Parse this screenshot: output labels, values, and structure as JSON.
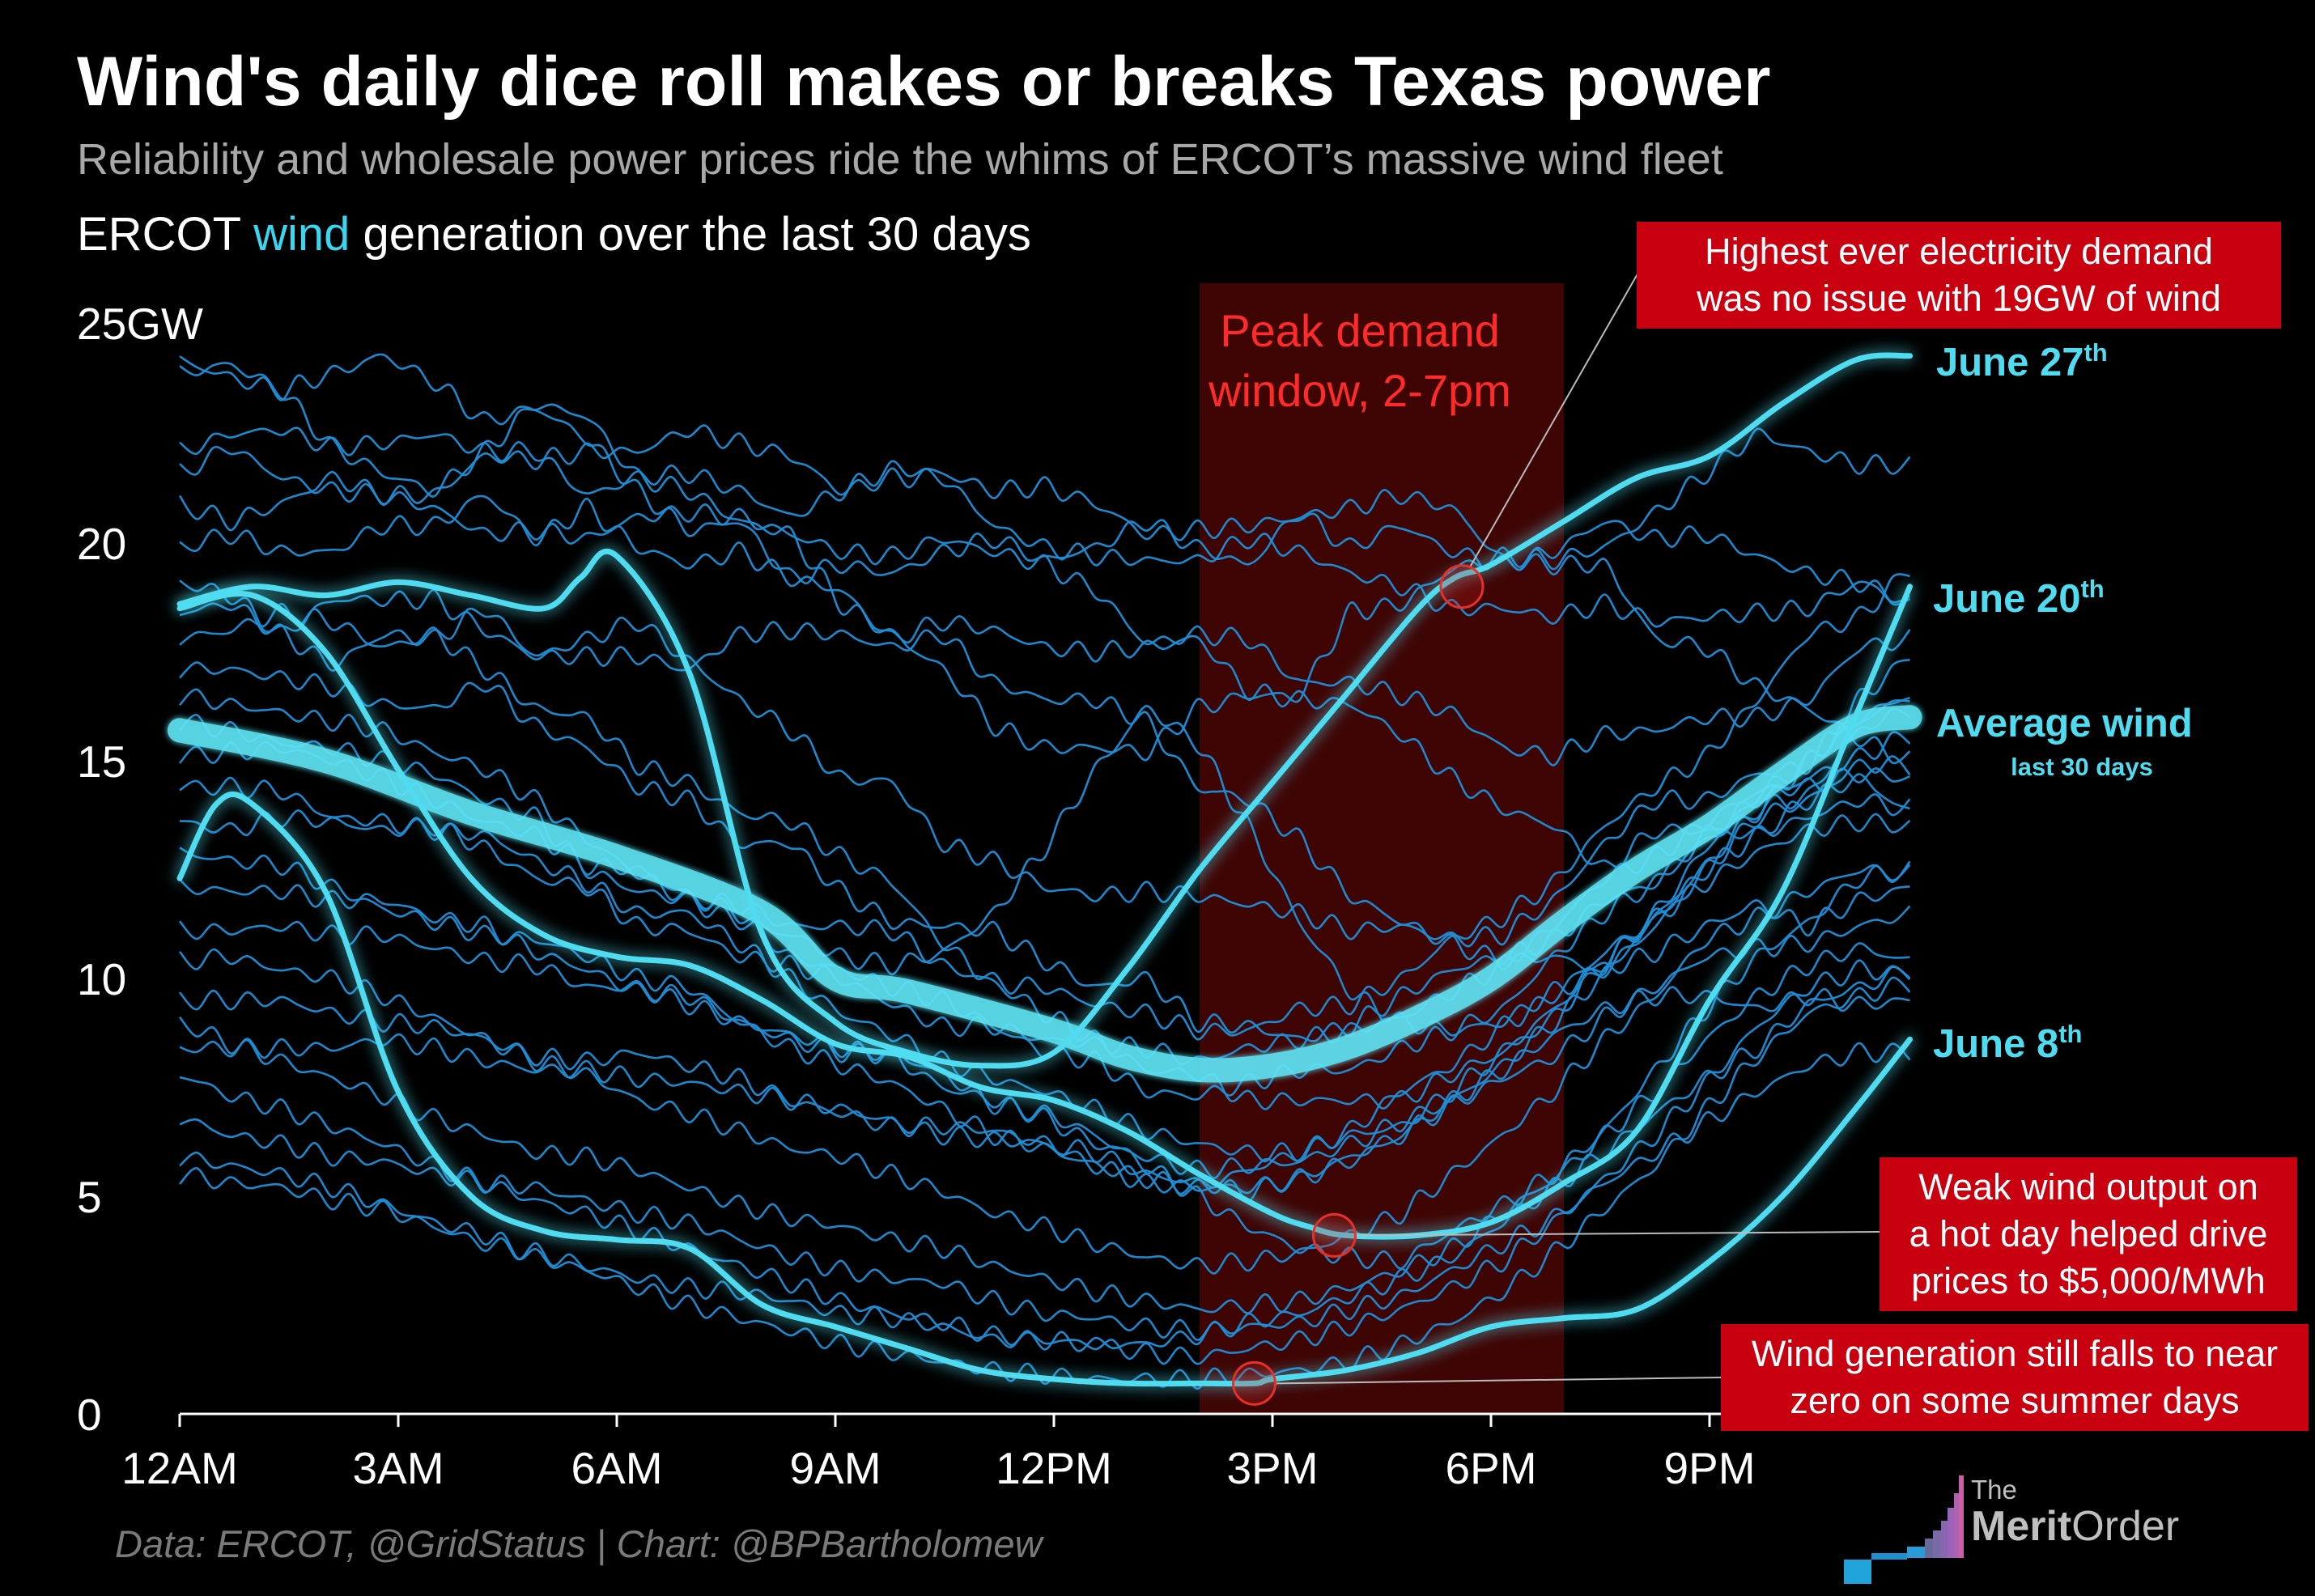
{
  "title": "Wind's daily dice roll makes or breaks Texas power",
  "subtitle": "Reliability and wholesale power prices ride the whims of ERCOT’s massive wind fleet",
  "heading": {
    "prefix": "ERCOT ",
    "highlight": "wind",
    "suffix": " generation over the last 30 days"
  },
  "unit_label": "25GW",
  "peak_window": {
    "line1": "Peak demand",
    "line2": "window, 2-7pm"
  },
  "callouts": {
    "record_demand": {
      "line1": "Highest ever electricity demand",
      "line2": "was no issue with 19GW of wind"
    },
    "weak_wind": {
      "line1": "Weak wind output on",
      "line2": "a hot day helped drive",
      "line3": "prices to $5,000/MWh"
    },
    "near_zero": {
      "line1": "Wind generation still falls to near",
      "line2": "zero on some summer days"
    }
  },
  "series_labels": {
    "june27": {
      "name": "June 27",
      "sup": "th"
    },
    "june20": {
      "name": "June 20",
      "sup": "th"
    },
    "june8": {
      "name": "June 8",
      "sup": "th"
    },
    "average": {
      "name": "Average wind",
      "sub": "last 30 days"
    }
  },
  "source": "Data: ERCOT, @GridStatus | Chart: @BPBartholomew",
  "logo": {
    "the": "The",
    "merit": "Merit",
    "order": "Order"
  },
  "colors": {
    "background": "#000000",
    "wind_line": "#1e8fd8",
    "highlight": "#4fdcf0",
    "average": "#5ee4f5",
    "peak_window": "#4a0606",
    "callout": "#c8000f"
  },
  "chart_data": {
    "type": "line",
    "title": "ERCOT wind generation over the last 30 days",
    "ylabel": "GW",
    "xlabel": "",
    "ylim": [
      0,
      25
    ],
    "xlim": [
      0,
      23.75
    ],
    "x_ticks": [
      0,
      3,
      6,
      9,
      12,
      15,
      18,
      21
    ],
    "x_tick_labels": [
      "12AM",
      "3AM",
      "6AM",
      "9AM",
      "12PM",
      "3PM",
      "6PM",
      "9PM"
    ],
    "y_ticks": [
      0,
      5,
      10,
      15,
      20
    ],
    "y_tick_labels": [
      "0",
      "5",
      "10",
      "15",
      "20"
    ],
    "peak_window_hours": [
      14,
      19
    ],
    "highlighted_series": [
      {
        "name": "Average wind (last 30 days)",
        "x": [
          0,
          2,
          4,
          6,
          8,
          9,
          10,
          12,
          13,
          14,
          15,
          16,
          17,
          18,
          19,
          20,
          21,
          22,
          23,
          23.75
        ],
        "y": [
          15.7,
          15,
          13.8,
          12.8,
          11.5,
          10,
          9.7,
          8.8,
          8.2,
          7.9,
          8,
          8.4,
          9.1,
          10,
          11.3,
          12.5,
          13.5,
          14.7,
          15.8,
          16
        ]
      },
      {
        "name": "June 27th",
        "x": [
          0,
          1,
          2,
          3,
          4,
          5,
          5.5,
          6,
          7,
          8,
          9,
          10,
          11,
          12,
          13,
          14,
          15,
          16,
          17,
          17.5,
          18,
          19,
          20,
          21,
          22,
          23,
          23.75
        ],
        "y": [
          18.6,
          19,
          18.8,
          19.1,
          18.8,
          18.5,
          19.2,
          19.7,
          17,
          11,
          9,
          8.3,
          8,
          8.3,
          10.2,
          12.5,
          14.5,
          16.5,
          18.5,
          19.2,
          19.5,
          20.5,
          21.5,
          22,
          23.2,
          24.2,
          24.3
        ]
      },
      {
        "name": "June 20th",
        "x": [
          0,
          1,
          2,
          3,
          4,
          5,
          6,
          7,
          8,
          9,
          10,
          11,
          12,
          13,
          14,
          15,
          15.5,
          16,
          17,
          18,
          19,
          20,
          21,
          22,
          23,
          23.75
        ],
        "y": [
          18.5,
          18.8,
          17.5,
          14.8,
          12.3,
          11,
          10.5,
          10.3,
          9.5,
          8.5,
          8.2,
          7.5,
          7.2,
          6.5,
          5.5,
          4.6,
          4.3,
          4.1,
          4.1,
          4.4,
          5.3,
          6.5,
          9.5,
          12,
          16,
          19
        ]
      },
      {
        "name": "June 8th",
        "x": [
          0,
          0.5,
          1,
          2,
          3,
          4,
          5,
          6,
          7,
          8,
          9,
          10,
          11,
          12,
          13,
          14,
          14.75,
          15,
          16,
          17,
          18,
          19,
          20,
          21,
          22,
          23,
          23.75
        ],
        "y": [
          12.3,
          14,
          14,
          12,
          7.4,
          5,
          4.2,
          4,
          3.8,
          2.5,
          2,
          1.5,
          1,
          0.8,
          0.7,
          0.7,
          0.7,
          0.8,
          1,
          1.4,
          2,
          2.2,
          2.4,
          3.5,
          5,
          7,
          8.6
        ]
      }
    ],
    "annotations": [
      {
        "text": "Highest ever electricity demand was no issue with 19GW of wind",
        "x": 17.6,
        "y": 19
      },
      {
        "text": "Weak wind output on a hot day helped drive prices to $5,000/MWh",
        "x": 15.85,
        "y": 4.1
      },
      {
        "text": "Wind generation still falls to near zero on some summer days",
        "x": 14.75,
        "y": 0.7
      }
    ],
    "background_series_count": 26,
    "background_series": [
      [
        24.2,
        23.8,
        23.5,
        23.9,
        24.3,
        23.7,
        22.8,
        23.1,
        22.4,
        21.2,
        20.3,
        20.5,
        19.2,
        19.5,
        19.3,
        19.8,
        20.1,
        19.6,
        19.9,
        20.5,
        19.9,
        19.5,
        20.7,
        19.9,
        20.4,
        19.8,
        19.5,
        19.8,
        20.5,
        20.1,
        20.2,
        19.7,
        19.3,
        19.1,
        18.6
      ],
      [
        23.9,
        24.1,
        23.5,
        22.2,
        21.6,
        21.2,
        22.1,
        23.2,
        22.9,
        21.5,
        21.2,
        20.5,
        20.2,
        18.6,
        17.9,
        17.1,
        15.8,
        15.3,
        15.3,
        15.2,
        16.2,
        16.5,
        16.5,
        18.4,
        18.6,
        19.4,
        19.7,
        19.6,
        19.9,
        20.7,
        21.6,
        22.5,
        22.1,
        21.8,
        21.8
      ],
      [
        22.1,
        22.5,
        22.6,
        22.2,
        22.3,
        22.5,
        22.1,
        22.1,
        21.1,
        21.5,
        21.6,
        21.2,
        20.6,
        21.2,
        21.7,
        21.6,
        21.2,
        21.3,
        20.9,
        20.2,
        20.3,
        20.4,
        20.6,
        20.8,
        21.1,
        20.8,
        19.6,
        19.5,
        19.5,
        17.8,
        17.6,
        16.7,
        16.2,
        15.5,
        15
      ],
      [
        21.6,
        22.2,
        21.5,
        21.2,
        21.1,
        20.8,
        20.2,
        20.3,
        20.1,
        20.6,
        20.7,
        20.6,
        20.2,
        19.8,
        19.7,
        20.1,
        19.8,
        19.5,
        18.9,
        17.7,
        17.9,
        17.8,
        16.8,
        16.8,
        16.5,
        16.1,
        15.3,
        15.1,
        15.6,
        15.7,
        16,
        16,
        16.4,
        17.6,
        17.8
      ],
      [
        20.9,
        20.5,
        20.9,
        21.5,
        21.1,
        21.1,
        22,
        21.9,
        22.1,
        22.1,
        22.6,
        22.3,
        22,
        21.2,
        21.5,
        21.5,
        20.4,
        19.9,
        19.7,
        19.6,
        19.6,
        20.1,
        19.8,
        19.3,
        19,
        18.5,
        18.5,
        18.3,
        18.6,
        18.2,
        18.3,
        18.4,
        18.5,
        19.1,
        18.6
      ],
      [
        19.9,
        20.2,
        19.8,
        19.8,
        20.4,
        20.4,
        21.1,
        20.1,
        20.8,
        19.9,
        19.5,
        19.8,
        19.2,
        18.9,
        17.8,
        18.2,
        18,
        17.6,
        17.5,
        17.6,
        17.8,
        16.6,
        16.4,
        16.3,
        15.6,
        14.6,
        13.9,
        13.5,
        12.5,
        13.4,
        13.4,
        13.3,
        14.1,
        14.6,
        13.8
      ],
      [
        19.1,
        18.8,
        17.9,
        18.7,
        18.7,
        18.7,
        18,
        17.4,
        17.4,
        17.4,
        17.1,
        17.9,
        18,
        17.9,
        17.6,
        17.9,
        16.8,
        16.4,
        16.4,
        15.9,
        14.4,
        14.1,
        13.2,
        11.9,
        11.3,
        10.8,
        10.4,
        10.5,
        10.2,
        10.6,
        11.2,
        11.7,
        11.2,
        11.8,
        12.1
      ],
      [
        18.4,
        18.6,
        17.9,
        17.2,
        17.9,
        17.8,
        18.5,
        17.4,
        17.8,
        18.2,
        17.3,
        16.4,
        15.7,
        14.6,
        14.5,
        13.1,
        12.7,
        12.1,
        11.9,
        12,
        11.9,
        11.7,
        11.5,
        11.1,
        11.2,
        10.9,
        11,
        11.8,
        13.1,
        14.1,
        14.1,
        14.7,
        14.9,
        16.4,
        17.4
      ],
      [
        17.8,
        18,
        18.4,
        18.2,
        17.6,
        17.9,
        17.1,
        16.2,
        16,
        14.9,
        14.5,
        13.8,
        13.6,
        12.8,
        12.2,
        10.8,
        9.9,
        9.8,
        9.4,
        9.2,
        8.8,
        8.8,
        9.3,
        9.4,
        10,
        10.9,
        11.4,
        12.2,
        13.5,
        14.4,
        15.1,
        16.4,
        17.9,
        18.3,
        19.4
      ],
      [
        17.1,
        17.1,
        16.9,
        16.7,
        16.3,
        16.2,
        16.8,
        15.8,
        15.3,
        14.4,
        14.1,
        13.1,
        13.1,
        12,
        11.3,
        11.2,
        11.1,
        10.4,
        9.8,
        10,
        9,
        8.9,
        8.6,
        8.9,
        9.6,
        10.2,
        10.5,
        10.9,
        11.8,
        12.2,
        13.3,
        14.1,
        14.6,
        15.1,
        15.6
      ],
      [
        16.5,
        16.3,
        16.1,
        15.9,
        15.7,
        15.2,
        14.8,
        14.1,
        13.2,
        12.4,
        11.8,
        11.3,
        11,
        10.5,
        10.3,
        10.6,
        11.5,
        13,
        14.8,
        16.2,
        15.4,
        13.5,
        11.3,
        9.7,
        9,
        8.8,
        9,
        9.7,
        10.2,
        11.2,
        12.5,
        13.7,
        14.1,
        14.9,
        14.9
      ],
      [
        15.9,
        15.7,
        15.4,
        15.3,
        15,
        14.7,
        14.1,
        13.7,
        12.5,
        12,
        11.8,
        11.7,
        11.2,
        11.2,
        11.1,
        10.3,
        9.9,
        9.2,
        8.6,
        7.9,
        7.8,
        7.2,
        7.2,
        7.2,
        7.2,
        7.8,
        8.3,
        9.1,
        10.4,
        11.4,
        12.6,
        13.9,
        14.2,
        15.7,
        16.2
      ],
      [
        15.1,
        15.2,
        15.3,
        15,
        14.6,
        14.1,
        13.6,
        13.3,
        12.6,
        12.5,
        11.9,
        11.5,
        10.5,
        10.2,
        9.8,
        9.5,
        8.9,
        8.3,
        8.1,
        7.4,
        7.3,
        7.6,
        7.9,
        7.9,
        8.4,
        8.8,
        9.3,
        10.5,
        11.5,
        12.2,
        13.2,
        13.8,
        15,
        15.9,
        16.5
      ],
      [
        14.4,
        14.4,
        14.3,
        13.7,
        13.6,
        13.4,
        13.3,
        12.7,
        12.2,
        11.5,
        11.5,
        10.8,
        10,
        9.2,
        8.7,
        8.1,
        7.7,
        7.4,
        7,
        6.5,
        6.2,
        6,
        6,
        6.4,
        6.6,
        7.4,
        8.3,
        9.3,
        10.3,
        11.5,
        13,
        14.2,
        15,
        16,
        16.5
      ],
      [
        13.6,
        13.4,
        13.7,
        13.6,
        13.4,
        13.5,
        13,
        12.3,
        12.1,
        11.2,
        11.1,
        10.5,
        10.3,
        10,
        9.4,
        8.9,
        8.9,
        8.6,
        8.5,
        8.4,
        8.1,
        8.4,
        8.6,
        8.8,
        9.1,
        9.7,
        10.3,
        11.2,
        12.3,
        12.8,
        13.6,
        14.3,
        14.4,
        14.7,
        14.6
      ],
      [
        12.9,
        12.7,
        12.6,
        12.1,
        11.6,
        11.3,
        11,
        10.9,
        10.5,
        10,
        9.8,
        9,
        8.4,
        8,
        7.6,
        7,
        6.4,
        6.1,
        5.7,
        5.4,
        5.2,
        5.6,
        6,
        6.5,
        7.4,
        8,
        8.9,
        9.6,
        10.6,
        11.4,
        12.2,
        12.9,
        13.4,
        13.6,
        13.5
      ],
      [
        12.1,
        12,
        12,
        11.8,
        11.8,
        11.4,
        11.2,
        10.6,
        10.2,
        9.7,
        9.6,
        9,
        8.6,
        8.3,
        8.3,
        7.8,
        7.1,
        6.9,
        6.4,
        5.7,
        5,
        4.3,
        3.8,
        3.6,
        3.5,
        4.2,
        4.8,
        5.5,
        6.5,
        7.9,
        9.3,
        10.5,
        11.3,
        12.3,
        12.5
      ],
      [
        11.1,
        11.1,
        11.2,
        11,
        11,
        10.7,
        10.4,
        10.3,
        9.8,
        9.8,
        9.4,
        9,
        8.7,
        8.4,
        8.2,
        7.5,
        7.2,
        6.8,
        6.2,
        5.9,
        5.6,
        5.7,
        5.8,
        6.2,
        6.7,
        7.2,
        8,
        9,
        10.1,
        11.4,
        12.5,
        13.3,
        13.7,
        14.1,
        13.9
      ],
      [
        10.4,
        10.5,
        10.2,
        10,
        9.6,
        9.1,
        8.6,
        8.1,
        7.8,
        7.2,
        6.9,
        6.5,
        6.1,
        5.9,
        5.5,
        5.1,
        4.6,
        4.3,
        3.9,
        3.6,
        3.4,
        3.5,
        3.7,
        4.1,
        4.6,
        5.5,
        6.4,
        7.4,
        8.6,
        9.6,
        10.9,
        11.4,
        12,
        12.5,
        12.4
      ],
      [
        9.5,
        9.5,
        9.5,
        9.2,
        9,
        8.9,
        8.6,
        8.2,
        8.1,
        8.3,
        8,
        7.7,
        7.2,
        6.9,
        6.6,
        6.6,
        6.5,
        6.2,
        6,
        5.5,
        5.3,
        5.1,
        5.4,
        5.9,
        6.4,
        7.1,
        7.7,
        8.2,
        9.1,
        9.8,
        10.5,
        10.7,
        10.8,
        11.2,
        11.5
      ],
      [
        9,
        8.5,
        8.1,
        7.7,
        7.3,
        6.8,
        6.4,
        6,
        5.9,
        5.6,
        5.2,
        4.8,
        4.5,
        4.3,
        4,
        3.8,
        3.4,
        3.1,
        2.8,
        2.6,
        2.4,
        2.5,
        2.6,
        2.9,
        3.3,
        3.8,
        4.6,
        5.4,
        6.4,
        7.4,
        8.6,
        9.6,
        10.3,
        10.7,
        10.4
      ],
      [
        8.4,
        8.4,
        8.4,
        8.4,
        8.6,
        8.4,
        8.1,
        7.9,
        7.9,
        7.7,
        7.6,
        7.4,
        7.2,
        7,
        6.7,
        6.4,
        6.3,
        6.2,
        5.7,
        5.3,
        5.2,
        5.2,
        5.4,
        5.8,
        6.4,
        7.2,
        7.9,
        8.7,
        9.3,
        9.6,
        9.6,
        9.3,
        9.6,
        9.4,
        9.5
      ],
      [
        7.8,
        7.3,
        7,
        6.6,
        6.2,
        5.7,
        5.3,
        4.9,
        4.6,
        4.2,
        3.8,
        3.4,
        3,
        2.6,
        2.3,
        2.1,
        1.8,
        1.7,
        1.6,
        1.4,
        1.3,
        1.5,
        1.7,
        2,
        2.4,
        2.9,
        3.5,
        4.4,
        5.4,
        6.4,
        7.6,
        8.9,
        9.8,
        10.2,
        10.1
      ],
      [
        6.8,
        6.4,
        6.2,
        5.9,
        5.8,
        5.5,
        5.3,
        5.2,
        4.9,
        4.6,
        4.4,
        4,
        3.6,
        3.3,
        3.1,
        3,
        2.6,
        2.3,
        2.2,
        2,
        1.9,
        2,
        2.1,
        2.4,
        2.7,
        3.3,
        3.9,
        4.5,
        5.3,
        6,
        6.7,
        7.4,
        8,
        8.3,
        8.3
      ],
      [
        5.9,
        5.7,
        5.5,
        5.2,
        4.8,
        4.4,
        4.1,
        3.6,
        3.3,
        2.9,
        2.5,
        2.2,
        1.9,
        1.6,
        1.4,
        1.2,
        1,
        0.9,
        0.8,
        0.8,
        0.8,
        0.9,
        1,
        1.2,
        1.6,
        2.1,
        2.8,
        3.7,
        4.7,
        5.7,
        7,
        8.2,
        9.2,
        9.6,
        9.9
      ],
      [
        5.5,
        5.3,
        5.2,
        4.9,
        4.7,
        4.3,
        3.9,
        3.7,
        3.4,
        3.1,
        2.9,
        2.8,
        2.6,
        2.3,
        2.2,
        2,
        1.7,
        1.7,
        1.6,
        1.6,
        1.8,
        2.1,
        2.3,
        2.7,
        3.1,
        3.6,
        4.4,
        5.2,
        6,
        6.9,
        7.7,
        8.4,
        9.4,
        9.8,
        10.2
      ]
    ]
  }
}
